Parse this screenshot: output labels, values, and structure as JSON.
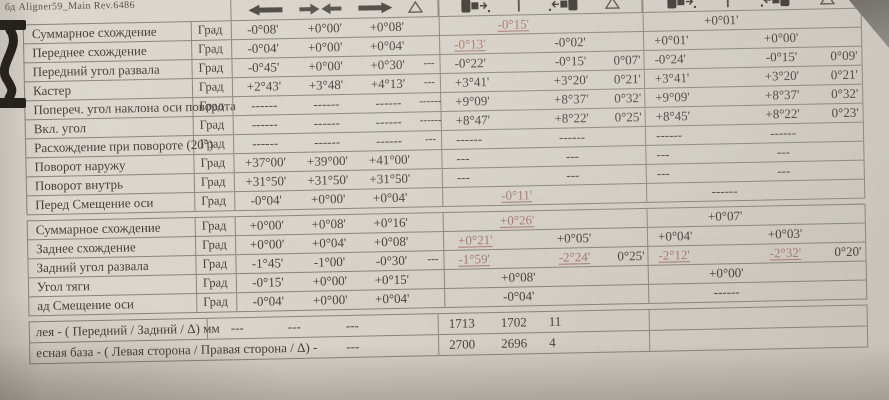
{
  "title": "бд   Aligner59_Main Rev.6486",
  "colors": {
    "paper": "#d6d2c9",
    "ink": "#45403a",
    "out_of_spec_red": "#a8766b",
    "border": "#8b8376"
  },
  "header": {
    "groups": [
      [
        "arrow-left",
        "toe-in",
        "arrow-right",
        "delta"
      ],
      [
        "axle-before",
        "separator-bar",
        "axle-after",
        "delta"
      ],
      [
        "axle-before",
        "separator-bar",
        "axle-after",
        "delta"
      ]
    ]
  },
  "tables": [
    {
      "rows": [
        {
          "label": "Суммарное схождение",
          "unit": "Град",
          "spec": [
            "-0°08'",
            "+0°00'",
            "+0°08'",
            ""
          ],
          "mid": {
            "t": "c",
            "v": "-0°15'",
            "red": true
          },
          "right": {
            "t": "c",
            "v": "+0°01'"
          }
        },
        {
          "label": "Переднее схождение",
          "unit": "Град",
          "spec": [
            "-0°04'",
            "+0°00'",
            "+0°04'",
            ""
          ],
          "mid": {
            "t": "lr",
            "l": "-0°13'",
            "r": "-0°02'",
            "d": "",
            "lred": true
          },
          "right": {
            "t": "lr",
            "l": "+0°01'",
            "r": "+0°00'",
            "d": ""
          }
        },
        {
          "label": "Передний угол развала",
          "unit": "Град",
          "spec": [
            "-0°45'",
            "+0°00'",
            "+0°30'",
            "---"
          ],
          "mid": {
            "t": "lr",
            "l": "-0°22'",
            "r": "-0°15'",
            "d": "0°07'"
          },
          "right": {
            "t": "lr",
            "l": "-0°24'",
            "r": "-0°15'",
            "d": "0°09'"
          }
        },
        {
          "label": "Кастер",
          "unit": "Град",
          "spec": [
            "+2°43'",
            "+3°48'",
            "+4°13'",
            "---"
          ],
          "mid": {
            "t": "lr",
            "l": "+3°41'",
            "r": "+3°20'",
            "d": "0°21'"
          },
          "right": {
            "t": "lr",
            "l": "+3°41'",
            "r": "+3°20'",
            "d": "0°21'"
          }
        },
        {
          "label": "Попереч. угол наклона оси поворота",
          "unit": "Град",
          "spec": [
            "------",
            "------",
            "------",
            "------"
          ],
          "mid": {
            "t": "lr",
            "l": "+9°09'",
            "r": "+8°37'",
            "d": "0°32'"
          },
          "right": {
            "t": "lr",
            "l": "+9°09'",
            "r": "+8°37'",
            "d": "0°32'"
          }
        },
        {
          "label": "Вкл. угол",
          "unit": "Град",
          "spec": [
            "------",
            "------",
            "------",
            "------"
          ],
          "mid": {
            "t": "lr",
            "l": "+8°47'",
            "r": "+8°22'",
            "d": "0°25'"
          },
          "right": {
            "t": "lr",
            "l": "+8°45'",
            "r": "+8°22'",
            "d": "0°23'"
          }
        },
        {
          "label": "Расхождение при повороте (20°)",
          "unit": "Град",
          "spec": [
            "------",
            "------",
            "------",
            "---"
          ],
          "mid": {
            "t": "lr",
            "l": "------",
            "r": "------",
            "d": ""
          },
          "right": {
            "t": "lr",
            "l": "------",
            "r": "------",
            "d": ""
          }
        },
        {
          "label": "Поворот наружу",
          "unit": "Град",
          "spec": [
            "+37°00'",
            "+39°00'",
            "+41°00'",
            ""
          ],
          "mid": {
            "t": "lr",
            "l": "---",
            "r": "---",
            "d": ""
          },
          "right": {
            "t": "lr",
            "l": "---",
            "r": "---",
            "d": ""
          }
        },
        {
          "label": "Поворот внутрь",
          "unit": "Град",
          "spec": [
            "+31°50'",
            "+31°50'",
            "+31°50'",
            ""
          ],
          "mid": {
            "t": "lr",
            "l": "---",
            "r": "---",
            "d": ""
          },
          "right": {
            "t": "lr",
            "l": "---",
            "r": "---",
            "d": ""
          }
        },
        {
          "label": "Перед Смещение оси",
          "unit": "Град",
          "spec": [
            "-0°04'",
            "+0°00'",
            "+0°04'",
            ""
          ],
          "mid": {
            "t": "c",
            "v": "-0°11'",
            "red": true
          },
          "right": {
            "t": "c",
            "v": "------"
          }
        }
      ]
    },
    {
      "rows": [
        {
          "label": "Суммарное схождение",
          "unit": "Град",
          "spec": [
            "+0°00'",
            "+0°08'",
            "+0°16'",
            ""
          ],
          "mid": {
            "t": "c",
            "v": "+0°26'",
            "red": true
          },
          "right": {
            "t": "c",
            "v": "+0°07'"
          }
        },
        {
          "label": "Заднее схождение",
          "unit": "Град",
          "spec": [
            "+0°00'",
            "+0°04'",
            "+0°08'",
            ""
          ],
          "mid": {
            "t": "lr",
            "l": "+0°21'",
            "r": "+0°05'",
            "d": "",
            "lred": true
          },
          "right": {
            "t": "lr",
            "l": "+0°04'",
            "r": "+0°03'",
            "d": ""
          }
        },
        {
          "label": "Задний угол развала",
          "unit": "Град",
          "spec": [
            "-1°45'",
            "-1°00'",
            "-0°30'",
            "---"
          ],
          "mid": {
            "t": "lr",
            "l": "-1°59'",
            "r": "-2°24'",
            "d": "0°25'",
            "lred": true,
            "rred": true
          },
          "right": {
            "t": "lr",
            "l": "-2°12'",
            "r": "-2°32'",
            "d": "0°20'",
            "lred": true,
            "rred": true
          }
        },
        {
          "label": "Угол тяги",
          "unit": "Град",
          "spec": [
            "-0°15'",
            "+0°00'",
            "+0°15'",
            ""
          ],
          "mid": {
            "t": "c",
            "v": "+0°08'"
          },
          "right": {
            "t": "c",
            "v": "+0°00'"
          }
        },
        {
          "label": "ад  Смещение оси",
          "unit": "Град",
          "spec": [
            "-0°04'",
            "+0°00'",
            "+0°04'",
            ""
          ],
          "mid": {
            "t": "c",
            "v": "-0°04'"
          },
          "right": {
            "t": "c",
            "v": "------"
          }
        }
      ]
    },
    {
      "rows": [
        {
          "label": "лея - ( Передний / Задний / Δ)  мм",
          "d1": "---",
          "d2": "---",
          "d3": "---",
          "v1": "1713",
          "v2": "1702",
          "v3": "11"
        },
        {
          "label": "есная база - ( Левая сторона / Правая сторона / Δ) -",
          "d1": "",
          "d2": "",
          "d3": "---",
          "v1": "2700",
          "v2": "2696",
          "v3": "4"
        }
      ]
    }
  ]
}
